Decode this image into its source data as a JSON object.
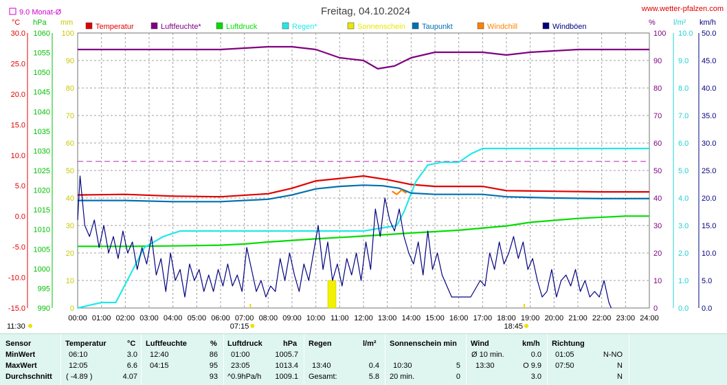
{
  "header": {
    "title": "Freitag, 04.10.2024",
    "site": "www.wetter-pfalzen.com",
    "monthly_avg": "9.0 Monat-Ø"
  },
  "units": {
    "temp": "°C",
    "pressure": "hPa",
    "rain_mm": "mm",
    "percent": "%",
    "rain_l": "l/m²",
    "wind": "km/h"
  },
  "legend": [
    {
      "label": "Temperatur",
      "color": "#e00000"
    },
    {
      "label": "Luftfeuchte*",
      "color": "#800080"
    },
    {
      "label": "Luftdruck",
      "color": "#00dd00"
    },
    {
      "label": "Regen*",
      "color": "#22e8e8"
    },
    {
      "label": "Sonnenschein",
      "color": "#e8e800"
    },
    {
      "label": "Taupunkt",
      "color": "#0070b0"
    },
    {
      "label": "Windchill",
      "color": "#ff8000"
    },
    {
      "label": "Windböen",
      "color": "#000080"
    }
  ],
  "sun": {
    "sunrise": "07:15",
    "sunset": "18:45",
    "day_start": "11:30"
  },
  "chart_data": {
    "type": "line",
    "x_ticks": [
      "00:00",
      "01:00",
      "02:00",
      "03:00",
      "04:00",
      "05:00",
      "06:00",
      "07:00",
      "08:00",
      "09:00",
      "10:00",
      "11:00",
      "12:00",
      "13:00",
      "14:00",
      "15:00",
      "16:00",
      "17:00",
      "18:00",
      "19:00",
      "20:00",
      "21:00",
      "22:00",
      "23:00",
      "24:00"
    ],
    "axes": {
      "temp": {
        "ticks": [
          "30.0",
          "25.0",
          "20.0",
          "15.0",
          "10.0",
          "5.0",
          "0.0",
          "-5.0",
          "-10.0",
          "-15.0"
        ],
        "range": [
          -15,
          30
        ]
      },
      "pressure": {
        "ticks": [
          "1060",
          "1055",
          "1050",
          "1045",
          "1040",
          "1035",
          "1030",
          "1025",
          "1020",
          "1015",
          "1010",
          "1005",
          "1000",
          "995",
          "990"
        ],
        "range": [
          990,
          1060
        ]
      },
      "rain_mm": {
        "ticks": [
          "100",
          "90",
          "80",
          "70",
          "60",
          "50",
          "40",
          "30",
          "20",
          "10",
          "0"
        ],
        "range": [
          0,
          100
        ]
      },
      "humidity": {
        "ticks": [
          "100",
          "90",
          "80",
          "70",
          "60",
          "50",
          "40",
          "30",
          "20",
          "10",
          "0"
        ],
        "range": [
          0,
          100
        ]
      },
      "rain_l": {
        "ticks": [
          "10.0",
          "9.0",
          "8.0",
          "7.0",
          "6.0",
          "5.0",
          "4.0",
          "3.0",
          "2.0",
          "1.0",
          "0.0"
        ],
        "range": [
          0,
          10
        ]
      },
      "wind": {
        "ticks": [
          "50.0",
          "45.0",
          "40.0",
          "35.0",
          "30.0",
          "25.0",
          "20.0",
          "15.0",
          "10.0",
          "5.0",
          "0.0"
        ],
        "range": [
          0,
          50
        ]
      }
    },
    "monthly_avg_temp": 9.0,
    "series": [
      {
        "name": "Temperatur",
        "axis": "temp",
        "color": "#e00000",
        "points": [
          [
            0,
            3.5
          ],
          [
            2,
            3.6
          ],
          [
            4,
            3.3
          ],
          [
            6,
            3.2
          ],
          [
            8,
            3.7
          ],
          [
            9,
            4.6
          ],
          [
            10,
            5.8
          ],
          [
            11,
            6.2
          ],
          [
            12,
            6.6
          ],
          [
            13,
            6.0
          ],
          [
            14,
            5.2
          ],
          [
            15,
            4.9
          ],
          [
            17,
            4.9
          ],
          [
            18,
            4.2
          ],
          [
            20,
            4.1
          ],
          [
            22,
            4.0
          ],
          [
            24,
            4.0
          ]
        ]
      },
      {
        "name": "Luftfeuchte*",
        "axis": "humidity",
        "color": "#800080",
        "points": [
          [
            0,
            94
          ],
          [
            4,
            94
          ],
          [
            6,
            94
          ],
          [
            8,
            95
          ],
          [
            9,
            95
          ],
          [
            10,
            94
          ],
          [
            11,
            91
          ],
          [
            12,
            90
          ],
          [
            12.6,
            87
          ],
          [
            13.3,
            88
          ],
          [
            14,
            91
          ],
          [
            15,
            93
          ],
          [
            17,
            93
          ],
          [
            18,
            92
          ],
          [
            19,
            93
          ],
          [
            21,
            94
          ],
          [
            24,
            94
          ]
        ]
      },
      {
        "name": "Luftdruck",
        "axis": "pressure",
        "color": "#00dd00",
        "points": [
          [
            0,
            1005.7
          ],
          [
            2,
            1005.7
          ],
          [
            4,
            1005.8
          ],
          [
            6,
            1006.0
          ],
          [
            7,
            1006.3
          ],
          [
            8,
            1006.8
          ],
          [
            10,
            1007.6
          ],
          [
            12,
            1008.3
          ],
          [
            14,
            1009.1
          ],
          [
            16,
            1009.8
          ],
          [
            18,
            1010.9
          ],
          [
            19,
            1011.8
          ],
          [
            21,
            1012.8
          ],
          [
            23,
            1013.4
          ],
          [
            24,
            1013.4
          ]
        ]
      },
      {
        "name": "Regen*",
        "axis": "rain_l",
        "color": "#22e8e8",
        "points": [
          [
            0,
            0.0
          ],
          [
            1,
            0.2
          ],
          [
            1.6,
            0.2
          ],
          [
            2.2,
            1.2
          ],
          [
            2.8,
            2.2
          ],
          [
            3.6,
            2.6
          ],
          [
            4.3,
            2.8
          ],
          [
            6,
            2.8
          ],
          [
            8,
            2.8
          ],
          [
            10,
            2.8
          ],
          [
            12,
            2.8
          ],
          [
            13.4,
            3.0
          ],
          [
            13.7,
            3.5
          ],
          [
            14.2,
            4.6
          ],
          [
            14.7,
            5.2
          ],
          [
            15.3,
            5.3
          ],
          [
            16,
            5.3
          ],
          [
            16.5,
            5.6
          ],
          [
            17,
            5.8
          ],
          [
            18,
            5.8
          ],
          [
            20,
            5.8
          ],
          [
            22,
            5.8
          ],
          [
            24,
            5.8
          ]
        ]
      },
      {
        "name": "Taupunkt",
        "axis": "temp",
        "color": "#0070b0",
        "points": [
          [
            0,
            2.6
          ],
          [
            2,
            2.6
          ],
          [
            4,
            2.4
          ],
          [
            6,
            2.4
          ],
          [
            8,
            2.8
          ],
          [
            9,
            3.5
          ],
          [
            10,
            4.5
          ],
          [
            11,
            4.9
          ],
          [
            12,
            5.1
          ],
          [
            12.8,
            5.0
          ],
          [
            13.5,
            4.6
          ],
          [
            14,
            3.8
          ],
          [
            15,
            3.6
          ],
          [
            17,
            3.6
          ],
          [
            18,
            3.2
          ],
          [
            20,
            3.0
          ],
          [
            22,
            2.9
          ],
          [
            24,
            2.9
          ]
        ]
      },
      {
        "name": "Windböen",
        "axis": "wind",
        "color": "#000080",
        "points": [
          [
            0,
            16
          ],
          [
            0.1,
            24
          ],
          [
            0.3,
            15
          ],
          [
            0.5,
            13
          ],
          [
            0.7,
            16
          ],
          [
            0.9,
            11
          ],
          [
            1.1,
            15
          ],
          [
            1.3,
            10
          ],
          [
            1.5,
            13
          ],
          [
            1.7,
            9
          ],
          [
            1.9,
            14
          ],
          [
            2.1,
            10
          ],
          [
            2.3,
            12
          ],
          [
            2.5,
            7
          ],
          [
            2.7,
            11
          ],
          [
            2.9,
            8
          ],
          [
            3.1,
            13
          ],
          [
            3.3,
            6
          ],
          [
            3.5,
            9
          ],
          [
            3.7,
            3
          ],
          [
            3.9,
            10
          ],
          [
            4.1,
            5
          ],
          [
            4.3,
            7
          ],
          [
            4.5,
            2
          ],
          [
            4.7,
            8
          ],
          [
            4.9,
            5
          ],
          [
            5.1,
            7
          ],
          [
            5.3,
            3
          ],
          [
            5.5,
            6
          ],
          [
            5.7,
            3
          ],
          [
            5.9,
            7
          ],
          [
            6.1,
            4
          ],
          [
            6.3,
            8
          ],
          [
            6.5,
            4
          ],
          [
            6.7,
            6
          ],
          [
            6.9,
            3
          ],
          [
            7.1,
            11
          ],
          [
            7.3,
            7
          ],
          [
            7.5,
            3
          ],
          [
            7.7,
            5
          ],
          [
            7.9,
            2
          ],
          [
            8.1,
            4
          ],
          [
            8.3,
            3
          ],
          [
            8.5,
            9
          ],
          [
            8.7,
            5
          ],
          [
            8.9,
            10
          ],
          [
            9.1,
            6
          ],
          [
            9.3,
            3
          ],
          [
            9.5,
            8
          ],
          [
            9.7,
            5
          ],
          [
            9.9,
            10
          ],
          [
            10.1,
            15
          ],
          [
            10.3,
            7
          ],
          [
            10.5,
            12
          ],
          [
            10.7,
            5
          ],
          [
            10.9,
            8
          ],
          [
            11.1,
            4
          ],
          [
            11.3,
            9
          ],
          [
            11.5,
            6
          ],
          [
            11.7,
            10
          ],
          [
            11.9,
            5
          ],
          [
            12.1,
            12
          ],
          [
            12.3,
            7
          ],
          [
            12.5,
            18
          ],
          [
            12.7,
            13
          ],
          [
            12.9,
            20
          ],
          [
            13.1,
            16
          ],
          [
            13.3,
            14
          ],
          [
            13.5,
            18
          ],
          [
            13.7,
            13
          ],
          [
            13.9,
            10
          ],
          [
            14.1,
            8
          ],
          [
            14.3,
            12
          ],
          [
            14.5,
            6
          ],
          [
            14.7,
            14
          ],
          [
            14.9,
            7
          ],
          [
            15.1,
            10
          ],
          [
            15.3,
            6
          ],
          [
            15.5,
            4
          ],
          [
            15.7,
            2
          ],
          [
            16,
            2
          ],
          [
            16.5,
            2
          ],
          [
            16.9,
            5
          ],
          [
            17.1,
            4
          ],
          [
            17.3,
            10
          ],
          [
            17.5,
            7
          ],
          [
            17.7,
            12
          ],
          [
            17.9,
            8
          ],
          [
            18.1,
            10
          ],
          [
            18.3,
            13
          ],
          [
            18.5,
            9
          ],
          [
            18.7,
            12
          ],
          [
            18.9,
            7
          ],
          [
            19.1,
            9
          ],
          [
            19.3,
            5
          ],
          [
            19.5,
            2
          ],
          [
            19.7,
            3
          ],
          [
            19.9,
            7
          ],
          [
            20.1,
            2
          ],
          [
            20.3,
            5
          ],
          [
            20.5,
            6
          ],
          [
            20.7,
            4
          ],
          [
            20.9,
            7
          ],
          [
            21.1,
            3
          ],
          [
            21.3,
            5
          ],
          [
            21.5,
            2
          ],
          [
            21.7,
            3
          ],
          [
            21.9,
            2
          ],
          [
            22.1,
            5
          ],
          [
            22.3,
            1
          ],
          [
            22.4,
            0
          ]
        ]
      },
      {
        "name": "Windchill",
        "axis": "temp",
        "color": "#ff8000",
        "points": [
          [
            13.2,
            4.1
          ],
          [
            13.4,
            3.6
          ],
          [
            13.6,
            4.3
          ],
          [
            13.8,
            3.8
          ]
        ]
      }
    ],
    "sunshine_bars": [
      [
        10.5,
        10
      ]
    ]
  },
  "stats": {
    "headers": [
      "Sensor",
      "Temperatur",
      "°C",
      "Luftfeuchte",
      "%",
      "Luftdruck",
      "hPa",
      "Regen",
      "l/m²",
      "Sonnenschein min",
      "Wind",
      "km/h",
      "Richtung"
    ],
    "row_labels": [
      "MinWert",
      "MaxWert",
      "Durchschnitt"
    ],
    "temperatur": [
      [
        "06:10",
        "3.0"
      ],
      [
        "12:05",
        "6.6"
      ],
      [
        "( -4.89 )",
        "4.07"
      ]
    ],
    "luftfeuchte": [
      [
        "12:40",
        "86"
      ],
      [
        "04:15",
        "95"
      ],
      [
        "",
        "93"
      ]
    ],
    "luftdruck": [
      [
        "01:00",
        "1005.7"
      ],
      [
        "23:05",
        "1013.4"
      ],
      [
        "^0.9hPa/h",
        "1009.1"
      ]
    ],
    "regen": [
      [
        "",
        ""
      ],
      [
        "13:40",
        "0.4"
      ],
      [
        "Gesamt:",
        "5.8"
      ]
    ],
    "sonnenschein": [
      [
        "",
        ""
      ],
      [
        "10:30",
        "5"
      ],
      [
        "20 min.",
        "0"
      ]
    ],
    "wind": [
      [
        "Ø 10 min.",
        "0.0"
      ],
      [
        "13:30",
        "O 9.9"
      ],
      [
        "",
        "3.0"
      ]
    ],
    "richtung": [
      [
        "01:05",
        "N-NO"
      ],
      [
        "07:50",
        "N"
      ],
      [
        "",
        "N"
      ]
    ]
  }
}
